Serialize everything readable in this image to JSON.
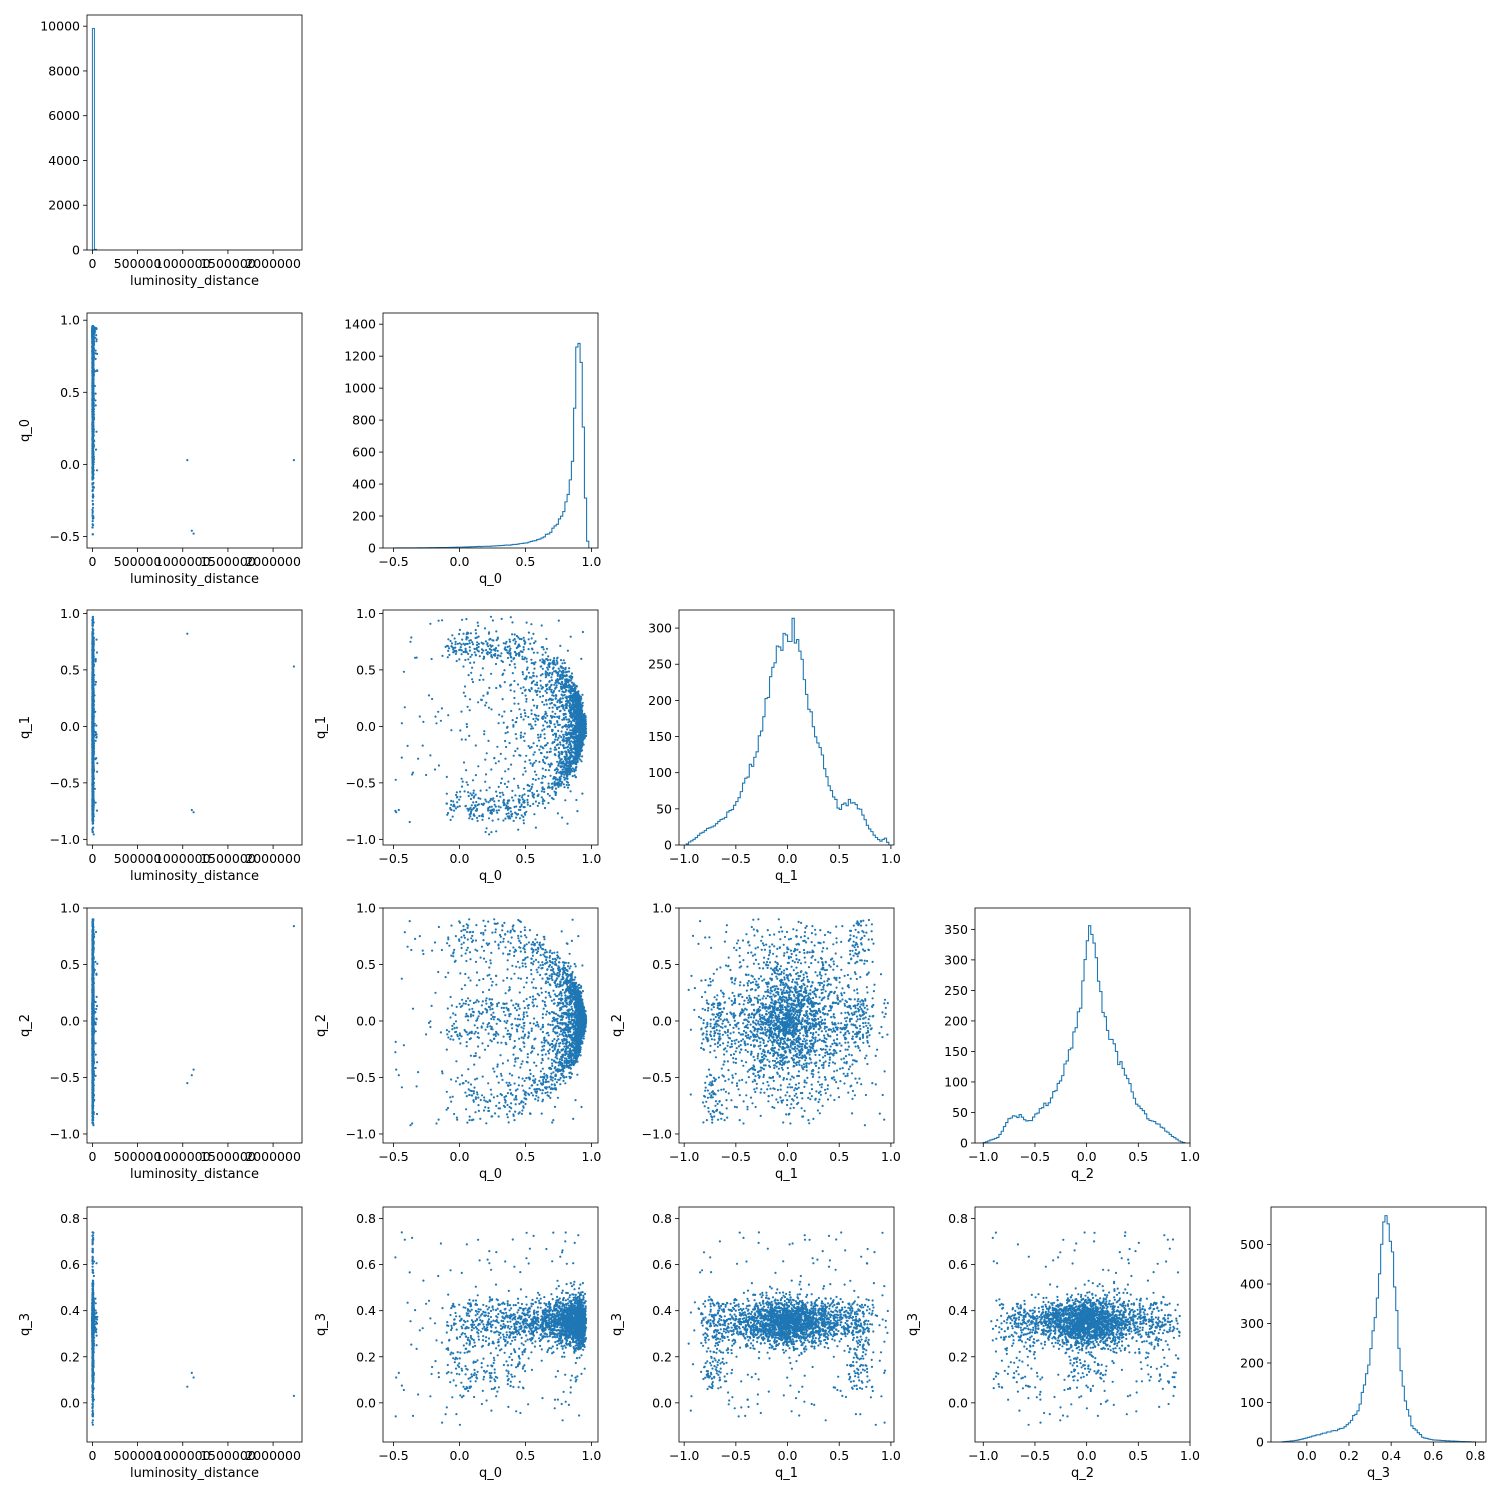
{
  "figure": {
    "type": "corner-plot",
    "marker_color": "#1f77b4"
  },
  "chart_data": {
    "type": "scatter-matrix",
    "variables": [
      {
        "name": "luminosity_distance",
        "range": [
          -60000,
          2320000
        ],
        "ticks": [
          0,
          500000,
          1000000,
          1500000,
          2000000
        ],
        "tick_labels": [
          "0",
          "500000",
          "1000000",
          "1500000",
          "2000000"
        ]
      },
      {
        "name": "q_0",
        "range": [
          -0.58,
          1.05
        ],
        "ticks": [
          -0.5,
          0.0,
          0.5,
          1.0
        ],
        "tick_labels": [
          "−0.5",
          "0.0",
          "0.5",
          "1.0"
        ]
      },
      {
        "name": "q_1",
        "range": [
          -1.05,
          1.03
        ],
        "ticks": [
          -1.0,
          -0.5,
          0.0,
          0.5,
          1.0
        ],
        "tick_labels": [
          "−1.0",
          "−0.5",
          "0.0",
          "0.5",
          "1.0"
        ]
      },
      {
        "name": "q_2",
        "range": [
          -1.08,
          1.0
        ],
        "ticks": [
          -1.0,
          -0.5,
          0.0,
          0.5,
          1.0
        ],
        "tick_labels": [
          "−1.0",
          "−0.5",
          "0.0",
          "0.5",
          "1.0"
        ]
      },
      {
        "name": "q_3",
        "range": [
          -0.17,
          0.85
        ],
        "ticks": [
          0.0,
          0.2,
          0.4,
          0.6,
          0.8
        ],
        "tick_labels": [
          "0.0",
          "0.2",
          "0.4",
          "0.6",
          "0.8"
        ]
      }
    ],
    "diagonal": [
      {
        "variable": "luminosity_distance",
        "type": "histogram",
        "ylim": [
          0,
          10500
        ],
        "yticks": [
          0,
          2000,
          4000,
          6000,
          8000,
          10000
        ],
        "bars": [
          {
            "x0": 0,
            "x1": 22000,
            "count": 9900
          },
          {
            "x0": 22000,
            "x1": 44000,
            "count": 30
          }
        ]
      },
      {
        "variable": "q_0",
        "type": "histogram",
        "ylim": [
          0,
          1470
        ],
        "yticks": [
          0,
          200,
          400,
          600,
          800,
          1000,
          1200,
          1400
        ],
        "profile": [
          [
            -0.5,
            0
          ],
          [
            -0.3,
            1
          ],
          [
            -0.1,
            3
          ],
          [
            0.0,
            5
          ],
          [
            0.1,
            8
          ],
          [
            0.2,
            10
          ],
          [
            0.3,
            14
          ],
          [
            0.4,
            20
          ],
          [
            0.5,
            30
          ],
          [
            0.55,
            40
          ],
          [
            0.6,
            55
          ],
          [
            0.65,
            75
          ],
          [
            0.7,
            110
          ],
          [
            0.75,
            160
          ],
          [
            0.8,
            250
          ],
          [
            0.83,
            350
          ],
          [
            0.86,
            600
          ],
          [
            0.88,
            1000
          ],
          [
            0.9,
            1400
          ],
          [
            0.92,
            1200
          ],
          [
            0.94,
            700
          ],
          [
            0.96,
            200
          ],
          [
            0.97,
            50
          ],
          [
            0.98,
            0
          ]
        ]
      },
      {
        "variable": "q_1",
        "type": "histogram",
        "ylim": [
          0,
          325
        ],
        "yticks": [
          0,
          50,
          100,
          150,
          200,
          250,
          300
        ],
        "profile": [
          [
            -0.98,
            0
          ],
          [
            -0.95,
            4
          ],
          [
            -0.9,
            8
          ],
          [
            -0.8,
            20
          ],
          [
            -0.7,
            28
          ],
          [
            -0.6,
            40
          ],
          [
            -0.5,
            55
          ],
          [
            -0.4,
            90
          ],
          [
            -0.3,
            130
          ],
          [
            -0.2,
            200
          ],
          [
            -0.1,
            265
          ],
          [
            -0.05,
            285
          ],
          [
            0.0,
            280
          ],
          [
            0.05,
            300
          ],
          [
            0.1,
            280
          ],
          [
            0.15,
            250
          ],
          [
            0.2,
            200
          ],
          [
            0.3,
            140
          ],
          [
            0.4,
            80
          ],
          [
            0.5,
            50
          ],
          [
            0.6,
            60
          ],
          [
            0.7,
            50
          ],
          [
            0.8,
            20
          ],
          [
            0.9,
            5
          ],
          [
            0.95,
            10
          ],
          [
            0.98,
            0
          ]
        ]
      },
      {
        "variable": "q_2",
        "type": "histogram",
        "ylim": [
          0,
          385
        ],
        "yticks": [
          0,
          50,
          100,
          150,
          200,
          250,
          300,
          350
        ],
        "profile": [
          [
            -1.0,
            0
          ],
          [
            -0.95,
            3
          ],
          [
            -0.85,
            10
          ],
          [
            -0.75,
            40
          ],
          [
            -0.65,
            45
          ],
          [
            -0.55,
            35
          ],
          [
            -0.45,
            55
          ],
          [
            -0.35,
            70
          ],
          [
            -0.25,
            100
          ],
          [
            -0.15,
            160
          ],
          [
            -0.05,
            240
          ],
          [
            0.0,
            330
          ],
          [
            0.05,
            345
          ],
          [
            0.1,
            300
          ],
          [
            0.15,
            220
          ],
          [
            0.2,
            190
          ],
          [
            0.3,
            140
          ],
          [
            0.4,
            100
          ],
          [
            0.5,
            60
          ],
          [
            0.6,
            40
          ],
          [
            0.7,
            30
          ],
          [
            0.8,
            15
          ],
          [
            0.9,
            3
          ],
          [
            0.95,
            0
          ]
        ]
      },
      {
        "variable": "q_3",
        "type": "histogram",
        "ylim": [
          0,
          595
        ],
        "yticks": [
          0,
          100,
          200,
          300,
          400,
          500
        ],
        "profile": [
          [
            -0.12,
            0
          ],
          [
            -0.05,
            4
          ],
          [
            0.0,
            10
          ],
          [
            0.05,
            18
          ],
          [
            0.1,
            25
          ],
          [
            0.15,
            30
          ],
          [
            0.2,
            45
          ],
          [
            0.25,
            90
          ],
          [
            0.28,
            160
          ],
          [
            0.31,
            250
          ],
          [
            0.33,
            350
          ],
          [
            0.35,
            460
          ],
          [
            0.37,
            550
          ],
          [
            0.38,
            570
          ],
          [
            0.4,
            500
          ],
          [
            0.42,
            380
          ],
          [
            0.44,
            220
          ],
          [
            0.47,
            100
          ],
          [
            0.5,
            40
          ],
          [
            0.55,
            12
          ],
          [
            0.6,
            5
          ],
          [
            0.7,
            2
          ],
          [
            0.8,
            0
          ]
        ]
      }
    ]
  }
}
